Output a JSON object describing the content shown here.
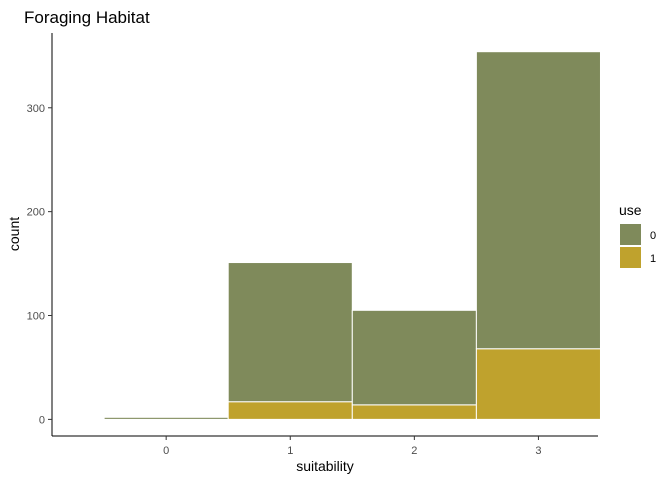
{
  "chart_data": {
    "type": "bar",
    "stacked": true,
    "title": "Foraging Habitat",
    "xlabel": "suitability",
    "ylabel": "count",
    "categories": [
      "0",
      "1",
      "2",
      "3"
    ],
    "series": [
      {
        "name": "0",
        "color": "#7f8a5b",
        "values": [
          2,
          134,
          91,
          286
        ]
      },
      {
        "name": "1",
        "color": "#bfa22d",
        "values": [
          0,
          17,
          14,
          68
        ]
      }
    ],
    "yticks": [
      0,
      100,
      200,
      300
    ],
    "ylim": [
      -16,
      372
    ],
    "grid": false,
    "legend": {
      "title": "use",
      "position": "right"
    }
  }
}
